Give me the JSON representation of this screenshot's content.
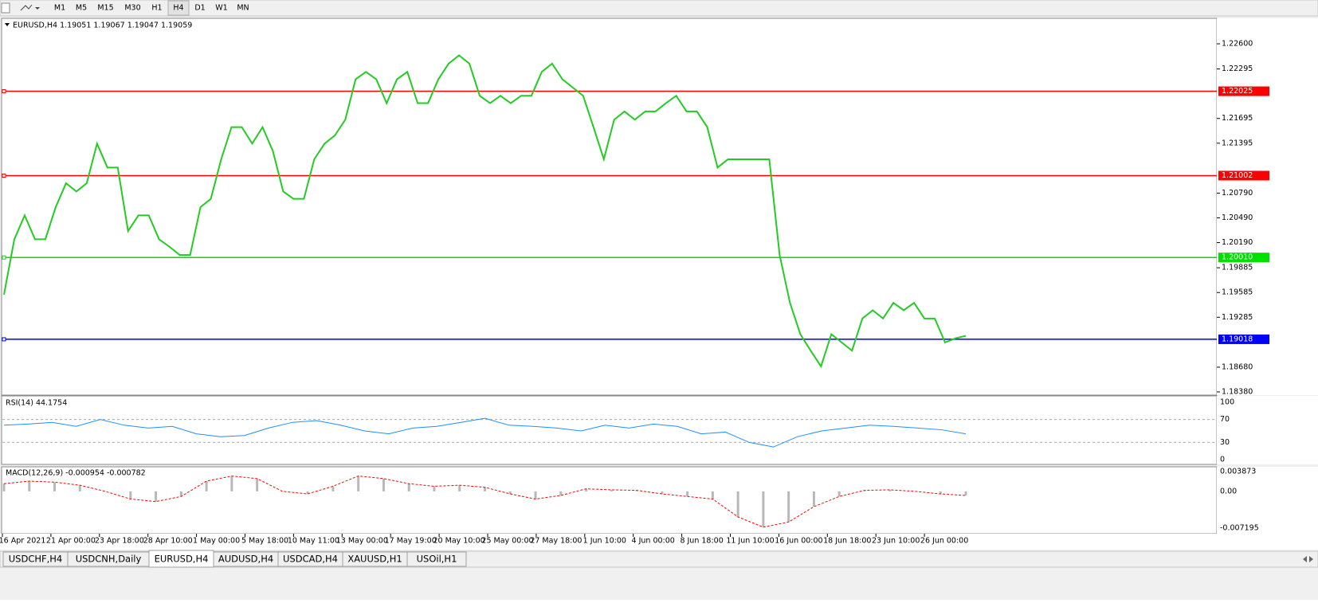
{
  "toolbar": {
    "timeframes": [
      "M1",
      "M5",
      "M15",
      "M30",
      "H1",
      "H4",
      "D1",
      "W1",
      "MN"
    ],
    "active": "H4"
  },
  "main_chart": {
    "header": "EURUSD,H4  1.19051 1.19067 1.19047 1.19059",
    "price_ticks": [
      "1.22600",
      "1.22295",
      "1.21695",
      "1.21395",
      "1.20790",
      "1.20490",
      "1.20190",
      "1.19885",
      "1.19585",
      "1.19285",
      "1.18680",
      "1.18380"
    ],
    "levels": [
      {
        "value": "1.22025",
        "color": "#ff0000"
      },
      {
        "value": "1.21002",
        "color": "#ff0000"
      },
      {
        "value": "1.20010",
        "color": "#00e000"
      },
      {
        "value": "1.19018",
        "color": "#0000ff"
      }
    ],
    "close_color": "#22cc22",
    "closes": [
      1.1956,
      1.2023,
      1.2052,
      1.2023,
      1.2023,
      1.2062,
      1.2091,
      1.2081,
      1.2091,
      1.2139,
      1.211,
      1.211,
      1.2033,
      1.2052,
      1.2052,
      1.2023,
      1.2014,
      1.2004,
      1.2004,
      1.2062,
      1.2072,
      1.212,
      1.2159,
      1.2159,
      1.2139,
      1.2159,
      1.213,
      1.2081,
      1.2072,
      1.2072,
      1.212,
      1.2139,
      1.2149,
      1.2168,
      1.2217,
      1.2226,
      1.2217,
      1.2188,
      1.2217,
      1.2226,
      1.2188,
      1.2188,
      1.2217,
      1.2236,
      1.2246,
      1.2236,
      1.2197,
      1.2188,
      1.2197,
      1.2188,
      1.2197,
      1.2197,
      1.2226,
      1.2236,
      1.2217,
      1.2207,
      1.2197,
      1.2159,
      1.212,
      1.2168,
      1.2178,
      1.2168,
      1.2178,
      1.2178,
      1.2188,
      1.2197,
      1.2178,
      1.2178,
      1.2159,
      1.211,
      1.212,
      1.212,
      1.212,
      1.212,
      1.212,
      1.2004,
      1.1946,
      1.1908,
      1.1888,
      1.1869,
      1.1908,
      1.1898,
      1.1888,
      1.1927,
      1.1937,
      1.1927,
      1.1946,
      1.1937,
      1.1946,
      1.1927,
      1.1927,
      1.1898,
      1.1903,
      1.1906
    ]
  },
  "rsi_panel": {
    "label": "RSI(14) 44.1754",
    "ticks": [
      100,
      70,
      30,
      0
    ],
    "color": "#1e90ff",
    "values": [
      60,
      62,
      65,
      58,
      70,
      60,
      55,
      58,
      45,
      40,
      42,
      55,
      65,
      68,
      60,
      50,
      45,
      55,
      58,
      65,
      72,
      60,
      58,
      55,
      50,
      60,
      55,
      62,
      58,
      45,
      48,
      30,
      22,
      40,
      50,
      55,
      60,
      58,
      55,
      52,
      45
    ]
  },
  "macd_panel": {
    "label": "MACD(12,26,9) -0.000954 -0.000782",
    "ticks": [
      "0.003873",
      "0.00",
      "-0.007195"
    ],
    "signal_color": "#ff0000",
    "signal": [
      0.0015,
      0.002,
      0.0018,
      0.0012,
      0,
      -0.0015,
      -0.002,
      -0.001,
      0.002,
      0.003,
      0.0025,
      0,
      -0.0005,
      0.001,
      0.003,
      0.0025,
      0.0015,
      0.001,
      0.0012,
      0.0008,
      -0.0005,
      -0.0015,
      -0.0008,
      0.0005,
      0.0003,
      0.0002,
      -0.0005,
      -0.001,
      -0.0015,
      -0.005,
      -0.007,
      -0.006,
      -0.003,
      -0.001,
      0.0002,
      0.0003,
      0,
      -0.0005,
      -0.0008
    ]
  },
  "time_axis": [
    "16 Apr 2021",
    "21 Apr 00:00",
    "23 Apr 18:00",
    "28 Apr 10:00",
    "1 May 00:00",
    "5 May 18:00",
    "10 May 11:00",
    "13 May 00:00",
    "17 May 19:00",
    "20 May 10:00",
    "25 May 00:00",
    "27 May 18:00",
    "1 Jun 10:00",
    "4 Jun 00:00",
    "8 Jun 18:00",
    "11 Jun 10:00",
    "16 Jun 00:00",
    "18 Jun 18:00",
    "23 Jun 10:00",
    "26 Jun 00:00"
  ],
  "tabs": [
    "USDCHF,H4",
    "USDCNH,Daily",
    "EURUSD,H4",
    "AUDUSD,H4",
    "USDCAD,H4",
    "XAUUSD,H1",
    "USOil,H1"
  ],
  "active_tab": "EURUSD,H4"
}
